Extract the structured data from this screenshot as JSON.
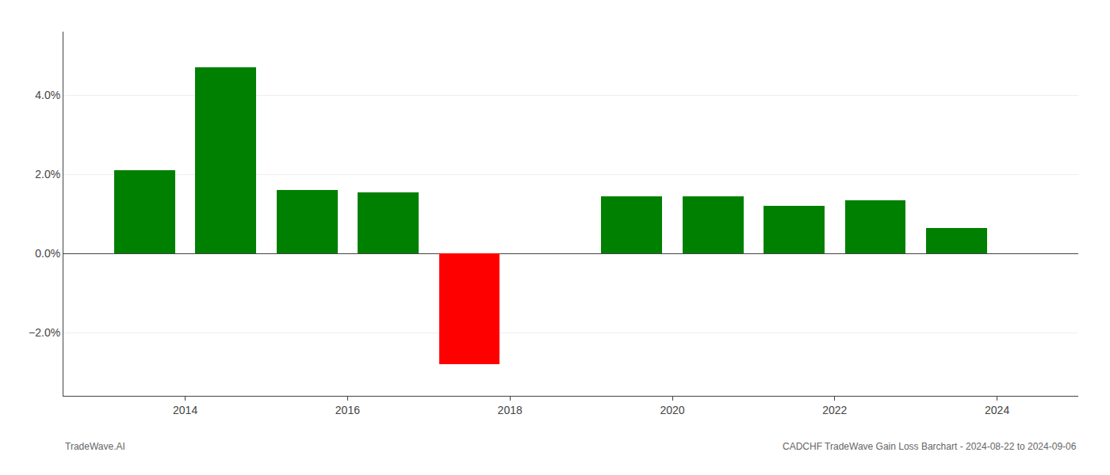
{
  "chart_data": {
    "type": "bar",
    "x": [
      2013.5,
      2014.5,
      2015.5,
      2016.5,
      2017.5,
      2019.5,
      2020.5,
      2021.5,
      2022.5,
      2023.5
    ],
    "values": [
      0.021,
      0.047,
      0.016,
      0.0155,
      -0.028,
      0.0145,
      0.0145,
      0.012,
      0.0135,
      0.0065
    ],
    "colors": [
      "#008000",
      "#008000",
      "#008000",
      "#008000",
      "#ff0000",
      "#008000",
      "#008000",
      "#008000",
      "#008000",
      "#008000"
    ],
    "xlim": [
      2012.5,
      2025.0
    ],
    "ylim": [
      -0.036,
      0.056
    ],
    "xticks": [
      2014,
      2016,
      2018,
      2020,
      2022,
      2024
    ],
    "yticks": [
      {
        "value": -0.02,
        "label": "−2.0%"
      },
      {
        "value": 0.0,
        "label": "0.0%"
      },
      {
        "value": 0.02,
        "label": "2.0%"
      },
      {
        "value": 0.04,
        "label": "4.0%"
      }
    ],
    "grid": true,
    "annotations": [
      "TradeWave.AI",
      "CADCHF TradeWave Gain Loss Barchart - 2024-08-22 to 2024-09-06"
    ]
  }
}
